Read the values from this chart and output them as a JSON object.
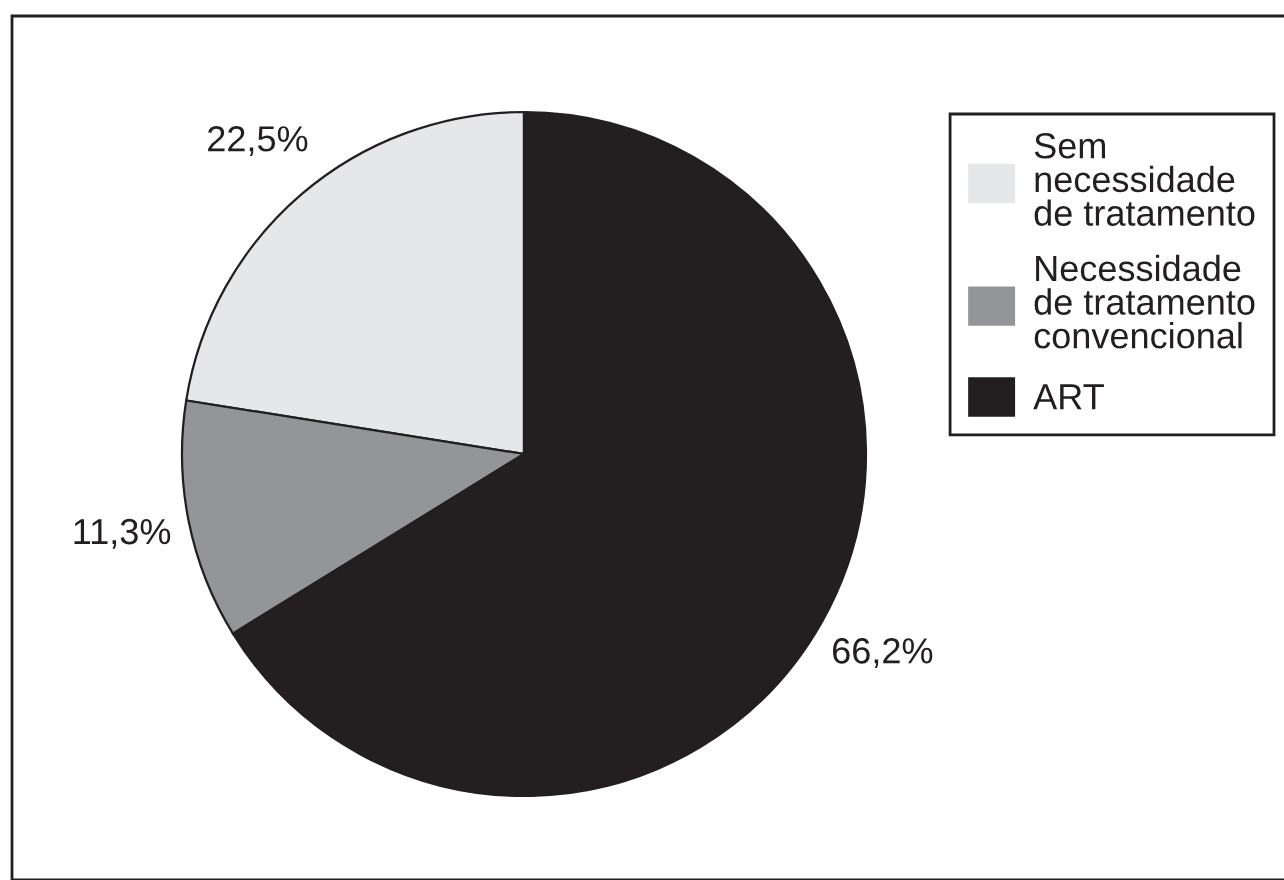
{
  "chart_data": {
    "type": "pie",
    "categories": [
      "Sem\nnecessidade\nde tratamento",
      "Necessidade\nde tratamento\nconvencional",
      "ART"
    ],
    "values": [
      22.5,
      11.3,
      66.2
    ],
    "value_labels": [
      "22,5%",
      "11,3%",
      "66,2%"
    ],
    "colors": [
      "#e6e7e8",
      "#939598",
      "#231f20"
    ],
    "legend": "top right"
  }
}
